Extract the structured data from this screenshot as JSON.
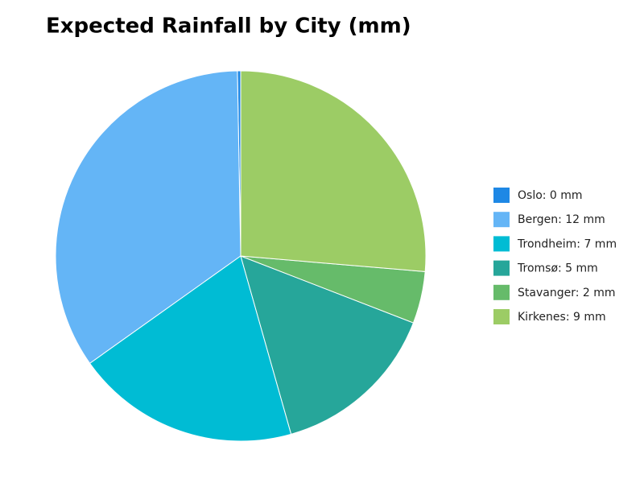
{
  "chart_data": {
    "type": "pie",
    "title": "Expected Rainfall by City (mm)",
    "values": [
      0.1,
      12.2,
      6.9,
      5.2,
      1.6,
      9.3
    ],
    "value_labels": [
      "Oslo: 0 mm",
      "Bergen: 12 mm",
      "Trondheim: 7 mm",
      "Tromsø: 5 mm",
      "Stavanger: 2 mm",
      "Kirkenes: 9 mm"
    ],
    "colors": [
      "#1e88e5",
      "#64b5f6",
      "#00bcd4",
      "#26a69a",
      "#66bb6a",
      "#9ccc65"
    ],
    "start": "top",
    "direction": "counterclockwise",
    "legend": "right"
  }
}
